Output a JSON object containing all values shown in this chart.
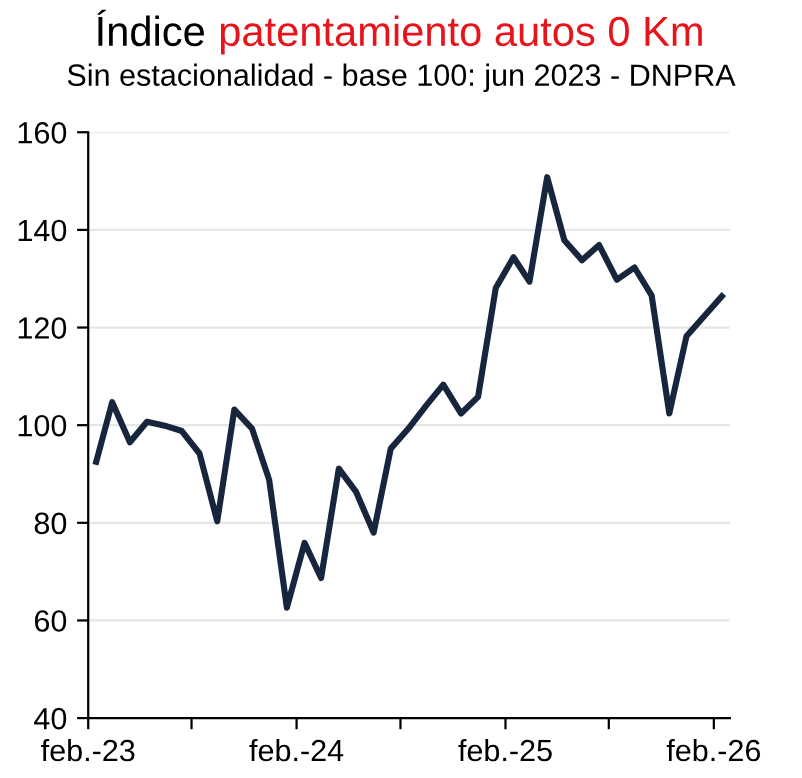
{
  "chart_data": {
    "type": "line",
    "title": "Índice patentamiento autos 0 Km",
    "subtitle": "Sin estacionalidad - base 100: jun 2023 - DNPRA",
    "x": [
      "2023-02-15",
      "2023-03-15",
      "2023-04-15",
      "2023-05-15",
      "2023-06-15",
      "2023-07-15",
      "2023-08-15",
      "2023-09-15",
      "2023-10-15",
      "2023-11-15",
      "2023-12-15",
      "2024-01-15",
      "2024-02-15",
      "2024-03-15",
      "2024-04-15",
      "2024-05-15",
      "2024-06-15",
      "2024-07-15",
      "2024-08-15",
      "2024-09-15",
      "2024-10-15",
      "2024-11-15",
      "2024-12-15",
      "2025-01-15",
      "2025-02-15",
      "2025-03-15",
      "2025-04-15",
      "2025-05-15",
      "2025-06-15",
      "2025-07-15",
      "2025-08-15",
      "2025-09-15",
      "2025-10-15",
      "2025-11-15",
      "2025-12-15",
      "2026-01-15",
      "2026-02-15"
    ],
    "series": [
      {
        "color": "#17263d",
        "values": [
          92.5,
          104.7,
          96.5,
          100.7,
          99.9,
          98.8,
          94.2,
          80.3,
          103.2,
          99.3,
          88.8,
          62.6,
          75.9,
          68.7,
          91.1,
          86.4,
          78.0,
          95.2,
          99.3,
          104.0,
          108.3,
          102.4,
          105.8,
          128.1,
          134.4,
          129.4,
          150.8,
          137.9,
          133.8,
          136.9,
          129.8,
          132.3,
          126.6,
          102.4,
          118.2,
          122.3,
          126.4
        ]
      }
    ],
    "xlim": [
      "2023-02-01",
      "2026-03-01"
    ],
    "xticks": [
      {
        "value": "2023-02-01",
        "label": "feb.-23"
      },
      {
        "value": "2023-08-01",
        "label": null
      },
      {
        "value": "2024-02-01",
        "label": "feb.-24"
      },
      {
        "value": "2024-08-01",
        "label": null
      },
      {
        "value": "2025-02-01",
        "label": "feb.-25"
      },
      {
        "value": "2025-08-01",
        "label": null
      },
      {
        "value": "2026-02-01",
        "label": "feb.-26"
      }
    ],
    "ylim": [
      40,
      160
    ],
    "yticks": [
      40,
      60,
      80,
      100,
      120,
      140,
      160
    ],
    "grid": "y",
    "legend": false,
    "marker": "none",
    "line_style": "solid"
  }
}
